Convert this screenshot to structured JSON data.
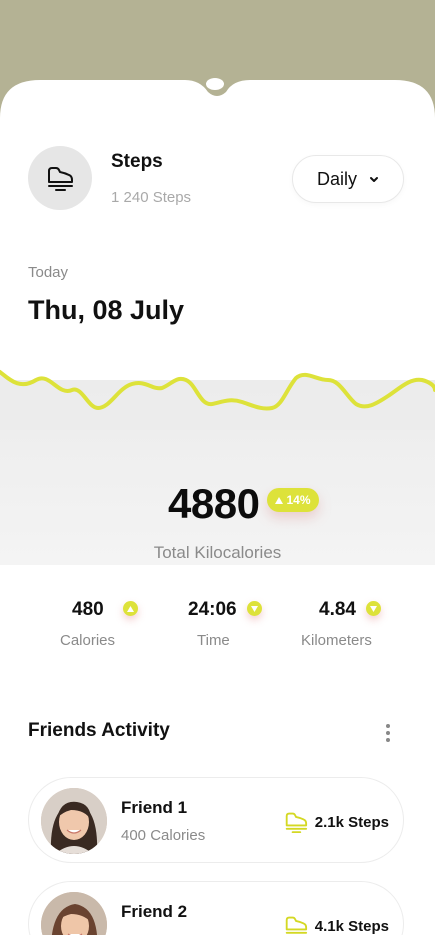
{
  "header": {
    "title": "Steps",
    "subtitle": "1 240 Steps",
    "period_label": "Daily"
  },
  "date": {
    "label": "Today",
    "value": "Thu, 08 July"
  },
  "summary": {
    "value": "4880",
    "change": "14%",
    "label": "Total Kilocalories"
  },
  "stats": [
    {
      "value": "480",
      "label": "Calories",
      "trend": "up"
    },
    {
      "value": "24:06",
      "label": "Time",
      "trend": "down"
    },
    {
      "value": "4.84",
      "label": "Kilometers",
      "trend": "down"
    }
  ],
  "friends": {
    "title": "Friends Activity",
    "items": [
      {
        "name": "Friend 1",
        "calories": "400 Calories",
        "steps": "2.1k Steps"
      },
      {
        "name": "Friend 2",
        "calories": "",
        "steps": "4.1k Steps"
      }
    ]
  },
  "colors": {
    "accent": "#dde23a",
    "background_top": "#b4b294",
    "text_primary": "#111111",
    "text_secondary": "#8a8a8a"
  },
  "icons": {
    "header": "shoe-icon",
    "dropdown": "chevron-down-icon",
    "trend_up": "arrow-up-icon",
    "trend_down": "arrow-down-icon",
    "more": "more-vertical-icon"
  }
}
